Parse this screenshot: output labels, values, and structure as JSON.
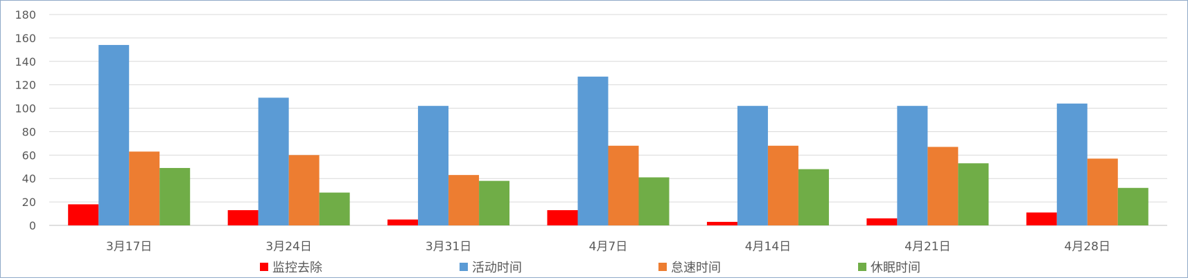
{
  "chart_data": {
    "type": "bar",
    "title": "",
    "xlabel": "",
    "ylabel": "",
    "ylim": [
      0,
      180
    ],
    "yticks": [
      0,
      20,
      40,
      60,
      80,
      100,
      120,
      140,
      160,
      180
    ],
    "grid": true,
    "legend_position": "bottom",
    "categories": [
      "3月17日",
      "3月24日",
      "3月31日",
      "4月7日",
      "4月14日",
      "4月21日",
      "4月28日"
    ],
    "series": [
      {
        "name": "监控去除",
        "color": "#ff0000",
        "values": [
          18,
          13,
          5,
          13,
          3,
          6,
          11
        ]
      },
      {
        "name": "活动时间",
        "color": "#5b9bd5",
        "values": [
          154,
          109,
          102,
          127,
          102,
          102,
          104
        ]
      },
      {
        "name": "怠速时间",
        "color": "#ed7d31",
        "values": [
          63,
          60,
          43,
          68,
          68,
          67,
          57
        ]
      },
      {
        "name": "休眠时间",
        "color": "#70ad47",
        "values": [
          49,
          28,
          38,
          41,
          48,
          53,
          32
        ]
      }
    ]
  }
}
